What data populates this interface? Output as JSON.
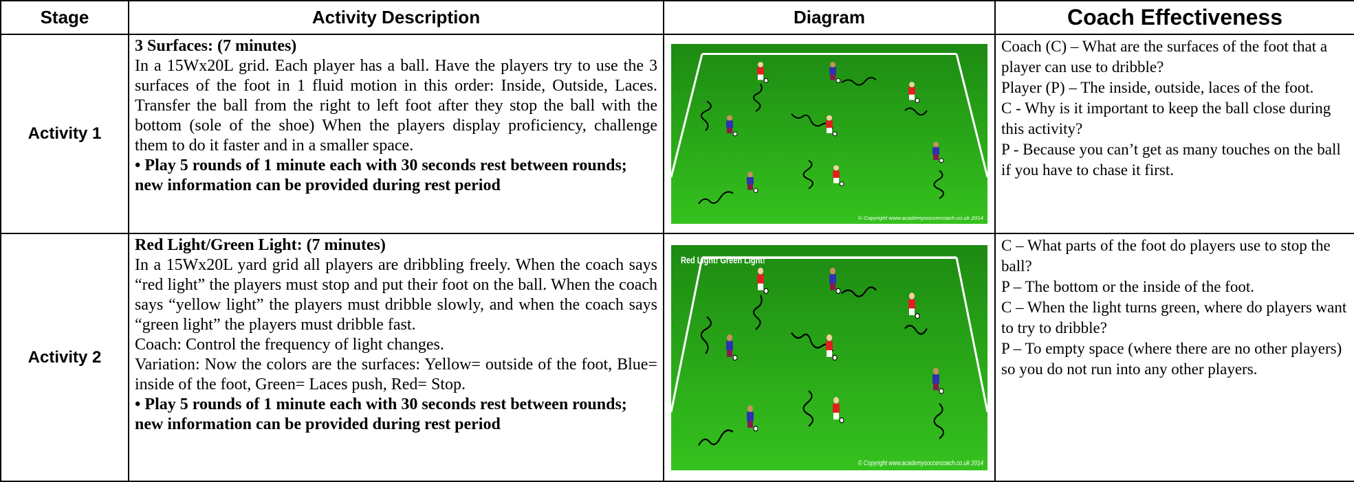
{
  "table": {
    "header": [
      "Stage",
      "Activity Description",
      "Diagram",
      "Coach Effectiveness"
    ],
    "rows": [
      {
        "stage": "Activity 1",
        "title": "3 Surfaces: (7 minutes)",
        "description": [
          "In a 15Wx20L grid. Each player has a ball. Have the players try to use the 3 surfaces of the foot in 1 fluid motion in this order: Inside, Outside, Laces. Transfer the ball from the right to left foot after they stop the ball with the bottom (sole of the shoe) When the players display proficiency, challenge them to do it faster and in a smaller space."
        ],
        "bullet": "Play 5 rounds of 1 minute each with 30  seconds rest between rounds; new information can be provided during rest period",
        "diagram": {
          "copyright": "© Copyright www.academysoccercoach.co.uk 2014"
        },
        "coach": [
          "Coach (C) – What are the surfaces of the foot that a player can use to dribble?",
          "Player (P) – The inside, outside, laces of the foot.",
          "C - Why is it important to keep the ball close during this activity?",
          "P - Because you can’t get as many touches on the ball if you have to chase it first."
        ]
      },
      {
        "stage": "Activity 2",
        "title": "Red Light/Green Light: (7 minutes)",
        "description": [
          "In a 15Wx20L yard grid all players are dribbling freely. When the coach says “red light” the players must stop and put their foot on the ball. When the coach says “yellow light” the players must dribble slowly, and when the coach says “green light” the players must dribble fast.",
          "Coach: Control the frequency of light changes.",
          "Variation: Now the colors are the surfaces: Yellow= outside of the foot, Blue= inside of the foot, Green= Laces push, Red= Stop."
        ],
        "bullet": "Play 5 rounds of 1 minute each with 30 seconds rest between rounds; new information can be provided during rest period",
        "diagram": {
          "label": "Red Light!  Green Light!",
          "copyright": "© Copyright www.academysoccercoach.co.uk 2014"
        },
        "coach": [
          "C – What parts of the foot do players use to stop the ball?",
          "P – The bottom or the inside of the foot.",
          "C – When the light turns green, where do players want to try to dribble?",
          "P – To empty space (where there are no other players) so you do not run into any other players."
        ]
      }
    ]
  }
}
